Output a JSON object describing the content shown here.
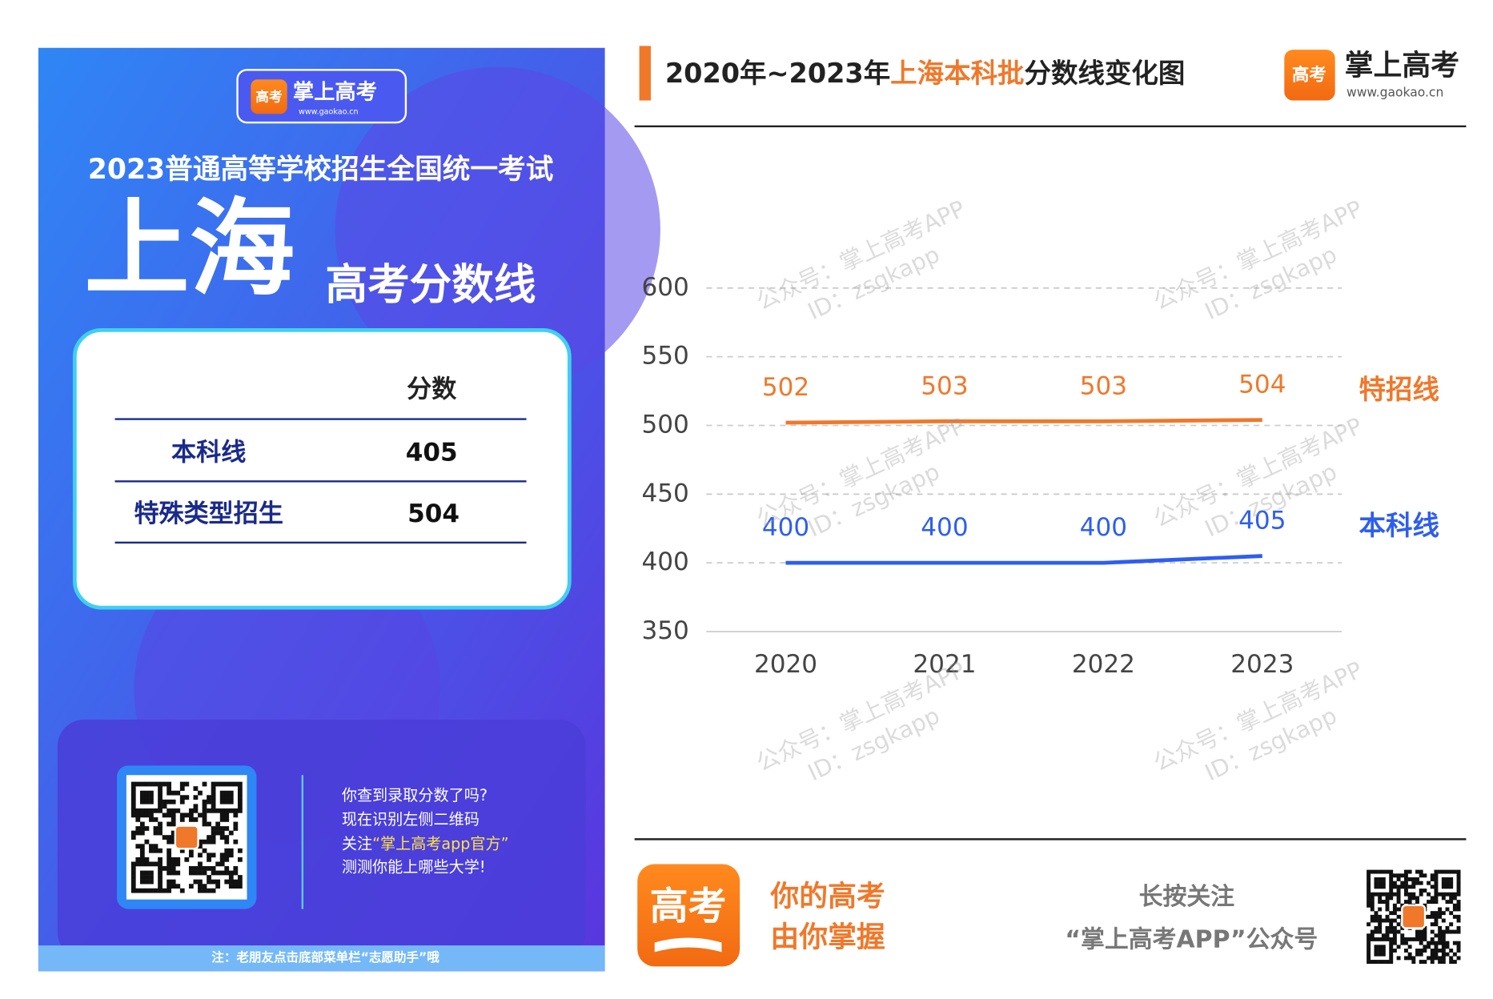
{
  "poster": {
    "logo_text": "掌上高考",
    "logo_url": "www.gaokao.cn",
    "exam": "2023普通高等学校招生全国统一考试",
    "province": "上海",
    "subtitle": "高考分数线",
    "table": {
      "header": "分数",
      "rows": [
        [
          "本科线",
          405
        ],
        [
          "特殊类型招生",
          504
        ]
      ]
    },
    "promo": [
      "你查到录取分数了吗?",
      "现在识别左侧二维码",
      [
        "关注",
        "“掌上高考app官方”"
      ],
      "测测你能上哪些大学!"
    ],
    "note": "注：老朋友点击底部菜单栏“志愿助手”哦"
  },
  "header": {
    "title_parts": [
      "2020年~2023年",
      "上海本科批",
      "分数线变化图"
    ],
    "brand": "掌上高考",
    "url": "www.gaokao.cn"
  },
  "chart_data": {
    "type": "line",
    "categories": [
      "2020",
      "2021",
      "2022",
      "2023"
    ],
    "series": [
      {
        "name": "特招线",
        "color": "#f0782a",
        "values": [
          502,
          503,
          503,
          504
        ]
      },
      {
        "name": "本科线",
        "color": "#2e5ef0",
        "values": [
          400,
          400,
          400,
          405
        ]
      }
    ],
    "ylim": [
      350,
      600
    ],
    "yticks": [
      350,
      400,
      450,
      500,
      550,
      600
    ],
    "grid": true,
    "data_labels": true
  },
  "watermark": [
    "公众号：掌上高考APP",
    "ID：zsgkapp"
  ],
  "footer": {
    "icon_text": "高考",
    "slogan": [
      "你的高考",
      "由你掌握"
    ],
    "follow": [
      "长按关注",
      "“掌上高考APP”公众号"
    ]
  }
}
